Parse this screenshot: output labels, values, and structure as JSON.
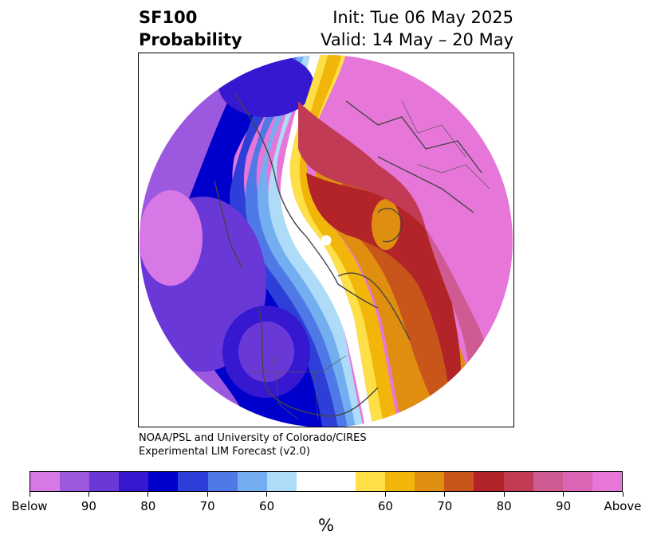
{
  "title": {
    "line1_left": "SF100",
    "line2_left": "Probability",
    "line1_right": "Init: Tue 06 May 2025",
    "line2_right": "Valid: 14 May – 20 May"
  },
  "credit": {
    "line1": "NOAA/PSL and University of Colorado/CIRES",
    "line2": "Experimental LIM Forecast (v2.0)"
  },
  "colorbar": {
    "unit": "%",
    "colors": [
      "#d877e6",
      "#9d58e0",
      "#6b38d8",
      "#3518d0",
      "#0000cc",
      "#2d3fd8",
      "#4f79e6",
      "#72aef0",
      "#aedcf8",
      "#ffffff",
      "#ffffff",
      "#fde048",
      "#f2b60a",
      "#e08e10",
      "#c8561a",
      "#b22428",
      "#c23b55",
      "#d05a92",
      "#dc64b4",
      "#e677d9"
    ],
    "labels": [
      "Below",
      "90",
      "80",
      "70",
      "60",
      "60",
      "70",
      "80",
      "90",
      "Above"
    ]
  },
  "map": {
    "projection": "polar",
    "pole_marker": "pole-dot",
    "colors": {
      "above": "#e677d9",
      "a90": "#dc64b4",
      "a80": "#b22428",
      "a70": "#c8561a",
      "a65": "#e08e10",
      "a60": "#f2b60a",
      "a55": "#fde048",
      "b55": "#aedcf8",
      "b60": "#72aef0",
      "b65": "#4f79e6",
      "b70": "#2d3fd8",
      "b80": "#0000cc",
      "b85": "#3518d0",
      "b90": "#6b38d8",
      "below": "#9d58e0",
      "b100": "#d877e6"
    }
  }
}
